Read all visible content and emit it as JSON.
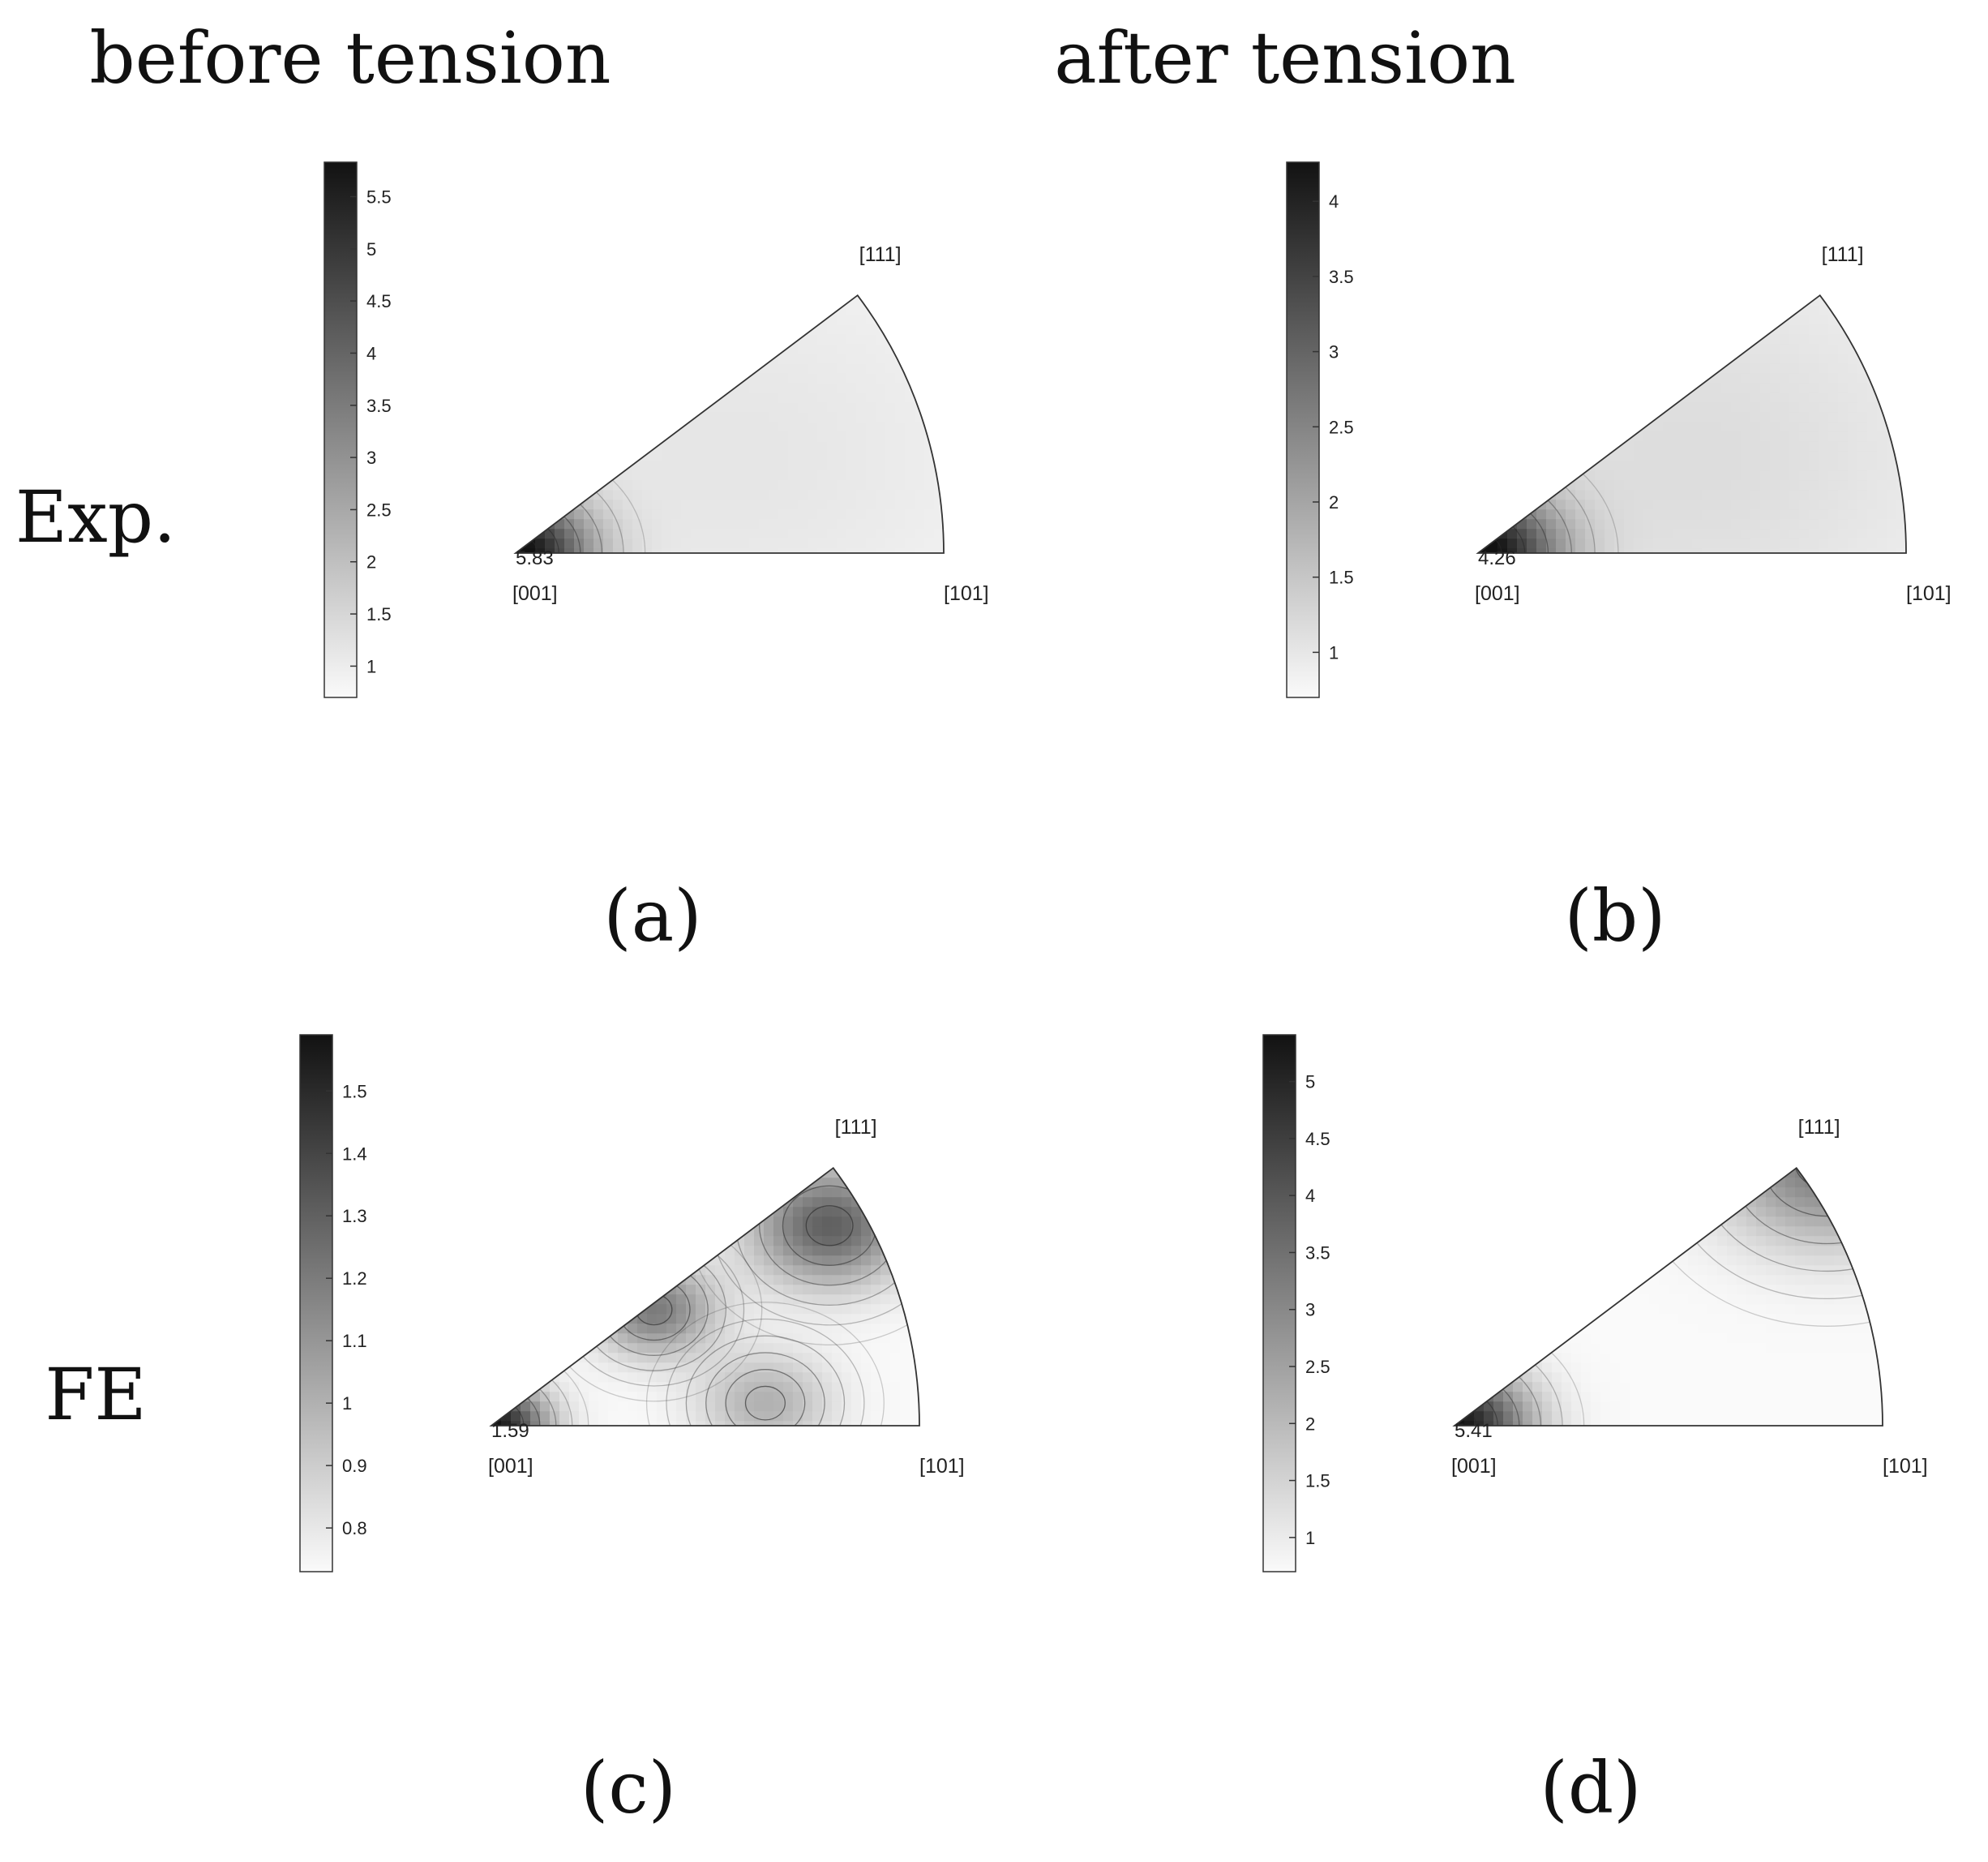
{
  "column_headers": [
    "before tension",
    "after tension"
  ],
  "row_labels": [
    "Exp.",
    "FE"
  ],
  "chart_data": [
    {
      "type": "heatmap",
      "panel_label": "(a)",
      "corner_labels": {
        "left": "[001]",
        "right": "[101]",
        "top": "[111]"
      },
      "max_label": "5.83",
      "colorbar": {
        "ticks": [
          "1",
          "1.5",
          "2",
          "2.5",
          "3",
          "3.5",
          "4",
          "4.5",
          "5",
          "5.5"
        ],
        "range": [
          0.7,
          5.83
        ]
      },
      "peaks": [
        {
          "u": 0.0,
          "v": 0.0,
          "value": 5.83,
          "spread": 0.12
        },
        {
          "u": 0.5,
          "v": 0.3,
          "value": 1.15,
          "spread": 0.5
        }
      ]
    },
    {
      "type": "heatmap",
      "panel_label": "(b)",
      "corner_labels": {
        "left": "[001]",
        "right": "[101]",
        "top": "[111]"
      },
      "max_label": "4.26",
      "colorbar": {
        "ticks": [
          "1",
          "1.5",
          "2",
          "2.5",
          "3",
          "3.5",
          "4"
        ],
        "range": [
          0.7,
          4.26
        ]
      },
      "peaks": [
        {
          "u": 0.0,
          "v": 0.0,
          "value": 4.26,
          "spread": 0.13
        },
        {
          "u": 0.5,
          "v": 0.3,
          "value": 1.15,
          "spread": 0.5
        }
      ]
    },
    {
      "type": "heatmap",
      "panel_label": "(c)",
      "corner_labels": {
        "left": "[001]",
        "right": "[101]",
        "top": "[111]"
      },
      "max_label": "1.59",
      "colorbar": {
        "ticks": [
          "0.8",
          "0.9",
          "1",
          "1.1",
          "1.2",
          "1.3",
          "1.4",
          "1.5"
        ],
        "range": [
          0.73,
          1.59
        ]
      },
      "peaks": [
        {
          "u": 0.0,
          "v": 0.0,
          "value": 1.59,
          "spread": 0.09
        },
        {
          "u": 0.79,
          "v": 0.62,
          "value": 1.3,
          "spread": 0.13
        },
        {
          "u": 0.38,
          "v": 0.36,
          "value": 1.2,
          "spread": 0.1
        },
        {
          "u": 0.64,
          "v": 0.07,
          "value": 1.0,
          "spread": 0.11
        }
      ]
    },
    {
      "type": "heatmap",
      "panel_label": "(d)",
      "corner_labels": {
        "left": "[001]",
        "right": "[101]",
        "top": "[111]"
      },
      "max_label": "5.41",
      "colorbar": {
        "ticks": [
          "1",
          "1.5",
          "2",
          "2.5",
          "3",
          "3.5",
          "4",
          "4.5",
          "5"
        ],
        "range": [
          0.7,
          5.41
        ]
      },
      "peaks": [
        {
          "u": 0.0,
          "v": 0.0,
          "value": 5.41,
          "spread": 0.12
        },
        {
          "u": 0.87,
          "v": 0.82,
          "value": 3.3,
          "spread": 0.18
        }
      ]
    }
  ]
}
